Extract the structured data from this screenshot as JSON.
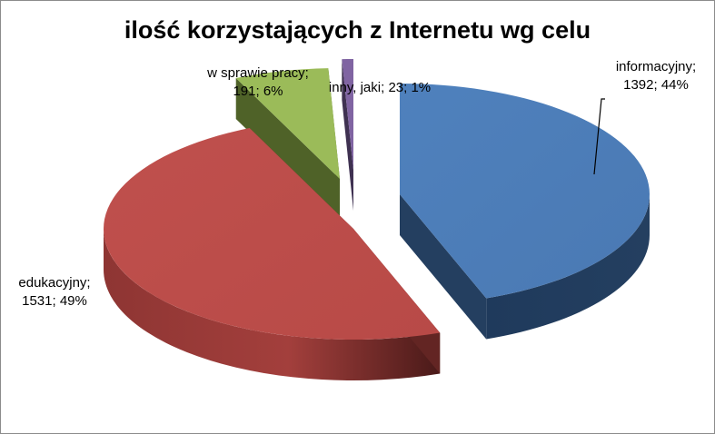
{
  "chart_data": {
    "type": "pie",
    "title": "ilość korzystających z Internetu wg celu",
    "slices": [
      {
        "name": "informacyjny",
        "value": 1392,
        "percent": 44,
        "color": "#4f81bd",
        "side_color": "#243f60",
        "label_lines": [
          "informacyjny;",
          "1392; 44%"
        ]
      },
      {
        "name": "edukacyjny",
        "value": 1531,
        "percent": 49,
        "color": "#c0504d",
        "side_color": "#632523",
        "label_lines": [
          "edukacyjny;",
          "1531; 49%"
        ]
      },
      {
        "name": "w sprawie pracy",
        "value": 191,
        "percent": 6,
        "color": "#9bbb59",
        "side_color": "#4f6228",
        "label_lines": [
          "w sprawie pracy;",
          "191; 6%"
        ]
      },
      {
        "name": "inny, jaki",
        "value": 23,
        "percent": 1,
        "color": "#8064a2",
        "side_color": "#3f3151",
        "label_lines": [
          "inny, jaki; 23; 1%"
        ]
      }
    ],
    "style": "3d-exploded-pie"
  }
}
